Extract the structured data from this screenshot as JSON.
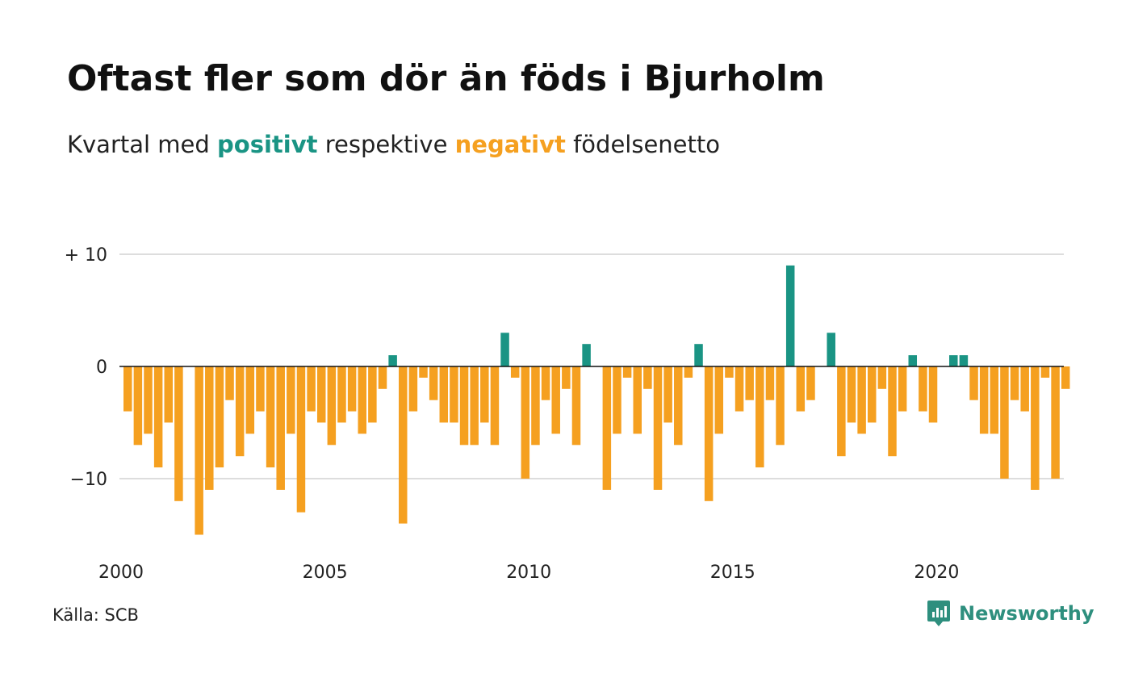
{
  "title": "Oftast fler som dör än föds i Bjurholm",
  "subtitle": {
    "prefix": "Kvartal med ",
    "positive_word": "positivt",
    "middle": " respektive ",
    "negative_word": "negativt",
    "suffix": " födelsenetto"
  },
  "source": "Källa: SCB",
  "brand": {
    "name": "Newsworthy",
    "icon": "newsworthy-logo-icon"
  },
  "colors": {
    "positive": "#1a9484",
    "negative": "#f5a020",
    "grid": "#dddddd",
    "baseline": "#111111"
  },
  "chart_data": {
    "type": "bar",
    "x_start": "2000 Q1",
    "x_ticks": [
      "2000",
      "2005",
      "2010",
      "2015",
      "2020"
    ],
    "y_ticks": [
      {
        "value": 10,
        "label": "+ 10"
      },
      {
        "value": 0,
        "label": "0"
      },
      {
        "value": -10,
        "label": "−10"
      }
    ],
    "ylim": [
      -15,
      10
    ],
    "grid": "horizontal",
    "values": [
      -4,
      -7,
      -6,
      -9,
      -5,
      -12,
      0,
      -15,
      -11,
      -9,
      -3,
      -8,
      -6,
      -4,
      -9,
      -11,
      -6,
      -13,
      -4,
      -5,
      -7,
      -5,
      -4,
      -6,
      -5,
      -2,
      1,
      -14,
      -4,
      -1,
      -3,
      -5,
      -5,
      -7,
      -7,
      -5,
      -7,
      3,
      -1,
      -10,
      -7,
      -3,
      -6,
      -2,
      -7,
      2,
      0,
      -11,
      -6,
      -1,
      -6,
      -2,
      -11,
      -5,
      -7,
      -1,
      2,
      -12,
      -6,
      -1,
      -4,
      -3,
      -9,
      -3,
      -7,
      9,
      -4,
      -3,
      0,
      3,
      -8,
      -5,
      -6,
      -5,
      -2,
      -8,
      -4,
      1,
      -4,
      -5,
      0,
      1,
      1,
      -3,
      -6,
      -6,
      -10,
      -3,
      -4,
      -11,
      -1,
      -10,
      -2
    ]
  }
}
